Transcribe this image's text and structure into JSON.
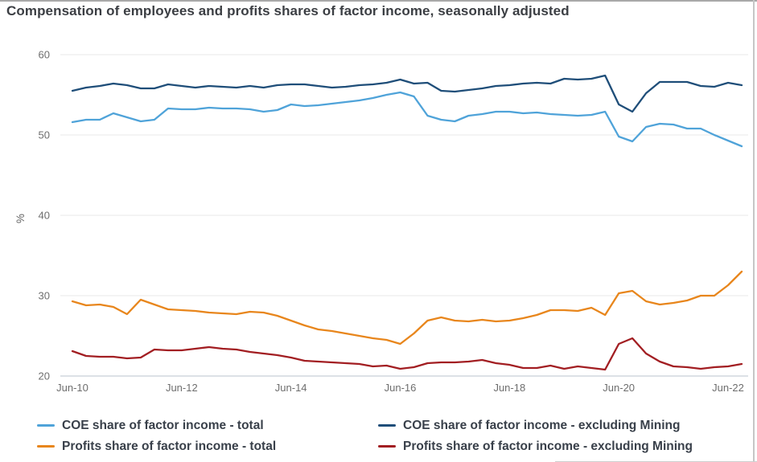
{
  "title": "Compensation of employees and profits shares of factor income, seasonally adjusted",
  "chart_data": {
    "type": "line",
    "title": "Compensation of employees and profits shares of factor income, seasonally adjusted",
    "xlabel": "",
    "ylabel": "%",
    "ylim": [
      20,
      60
    ],
    "y_ticks": [
      20,
      30,
      40,
      50,
      60
    ],
    "grid": "horizontal",
    "legend_position": "bottom",
    "x_tick_labels": [
      "Jun-10",
      "Jun-12",
      "Jun-14",
      "Jun-16",
      "Jun-18",
      "Jun-20",
      "Jun-22"
    ],
    "x": [
      "Jun-10",
      "Sep-10",
      "Dec-10",
      "Mar-11",
      "Jun-11",
      "Sep-11",
      "Dec-11",
      "Mar-12",
      "Jun-12",
      "Sep-12",
      "Dec-12",
      "Mar-13",
      "Jun-13",
      "Sep-13",
      "Dec-13",
      "Mar-14",
      "Jun-14",
      "Sep-14",
      "Dec-14",
      "Mar-15",
      "Jun-15",
      "Sep-15",
      "Dec-15",
      "Mar-16",
      "Jun-16",
      "Sep-16",
      "Dec-16",
      "Mar-17",
      "Jun-17",
      "Sep-17",
      "Dec-17",
      "Mar-18",
      "Jun-18",
      "Sep-18",
      "Dec-18",
      "Mar-19",
      "Jun-19",
      "Sep-19",
      "Dec-19",
      "Mar-20",
      "Jun-20",
      "Sep-20",
      "Dec-20",
      "Mar-21",
      "Jun-21",
      "Sep-21",
      "Dec-21",
      "Mar-22",
      "Jun-22",
      "Sep-22"
    ],
    "series": [
      {
        "name": "COE share of factor income - total",
        "color": "#4FA3D9",
        "values": [
          51.6,
          51.9,
          51.9,
          52.7,
          52.2,
          51.7,
          51.9,
          53.3,
          53.2,
          53.2,
          53.4,
          53.3,
          53.3,
          53.2,
          52.9,
          53.1,
          53.8,
          53.6,
          53.7,
          53.9,
          54.1,
          54.3,
          54.6,
          55.0,
          55.3,
          54.8,
          52.4,
          51.9,
          51.7,
          52.4,
          52.6,
          52.9,
          52.9,
          52.7,
          52.8,
          52.6,
          52.5,
          52.4,
          52.5,
          52.9,
          49.8,
          49.2,
          51.0,
          51.4,
          51.3,
          50.8,
          50.8,
          50.0,
          49.3,
          48.6
        ]
      },
      {
        "name": "COE share of factor income - excluding Mining",
        "color": "#1F4E79",
        "values": [
          55.5,
          55.9,
          56.1,
          56.4,
          56.2,
          55.8,
          55.8,
          56.3,
          56.1,
          55.9,
          56.1,
          56.0,
          55.9,
          56.1,
          55.9,
          56.2,
          56.3,
          56.3,
          56.1,
          55.9,
          56.0,
          56.2,
          56.3,
          56.5,
          56.9,
          56.4,
          56.5,
          55.5,
          55.4,
          55.6,
          55.8,
          56.1,
          56.2,
          56.4,
          56.5,
          56.4,
          57.0,
          56.9,
          57.0,
          57.4,
          53.8,
          52.9,
          55.2,
          56.6,
          56.6,
          56.6,
          56.1,
          56.0,
          56.5,
          56.2
        ]
      },
      {
        "name": "Profits share of factor income - total",
        "color": "#E8861C",
        "values": [
          29.3,
          28.8,
          28.9,
          28.6,
          27.7,
          29.5,
          28.9,
          28.3,
          28.2,
          28.1,
          27.9,
          27.8,
          27.7,
          28.0,
          27.9,
          27.5,
          26.9,
          26.3,
          25.8,
          25.6,
          25.3,
          25.0,
          24.7,
          24.5,
          24.0,
          25.3,
          26.9,
          27.3,
          26.9,
          26.8,
          27.0,
          26.8,
          26.9,
          27.2,
          27.6,
          28.2,
          28.2,
          28.1,
          28.5,
          27.6,
          30.3,
          30.6,
          29.3,
          28.9,
          29.1,
          29.4,
          30.0,
          30.0,
          31.3,
          33.0
        ]
      },
      {
        "name": "Profits share of factor income - excluding Mining",
        "color": "#A21E22",
        "values": [
          23.1,
          22.5,
          22.4,
          22.4,
          22.2,
          22.3,
          23.3,
          23.2,
          23.2,
          23.4,
          23.6,
          23.4,
          23.3,
          23.0,
          22.8,
          22.6,
          22.3,
          21.9,
          21.8,
          21.7,
          21.6,
          21.5,
          21.2,
          21.3,
          20.9,
          21.1,
          21.6,
          21.7,
          21.7,
          21.8,
          22.0,
          21.6,
          21.4,
          21.0,
          21.0,
          21.3,
          20.9,
          21.2,
          21.0,
          20.8,
          24.0,
          24.7,
          22.8,
          21.8,
          21.2,
          21.1,
          20.9,
          21.1,
          21.2,
          21.5
        ]
      }
    ],
    "style": {
      "grid_color": "#e8e8e8",
      "axis_line_color": "#bac3ce",
      "tick_label_color": "#6e6e6e",
      "line_width": 2.3
    }
  },
  "legend": {
    "items": [
      {
        "label": "COE share of factor income - total"
      },
      {
        "label": "COE share of factor income - excluding Mining"
      },
      {
        "label": "Profits share of factor income - total"
      },
      {
        "label": "Profits share of factor income - excluding Mining"
      }
    ]
  }
}
